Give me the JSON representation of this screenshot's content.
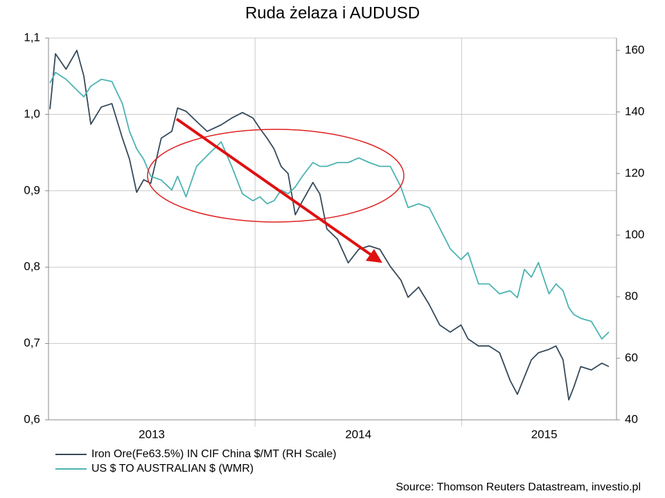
{
  "chart_data": {
    "type": "line",
    "title": "Ruda żelaza i AUDUSD",
    "source": "Source: Thomson Reuters Datastream, investio.pl",
    "x": [
      2013.007,
      2013.034,
      2013.085,
      2013.137,
      2013.171,
      2013.205,
      2013.256,
      2013.307,
      2013.358,
      2013.392,
      2013.427,
      2013.461,
      2013.495,
      2013.546,
      2013.597,
      2013.625,
      2013.666,
      2013.717,
      2013.768,
      2013.836,
      2013.887,
      2013.939,
      2013.99,
      2014.024,
      2014.058,
      2014.092,
      2014.126,
      2014.16,
      2014.195,
      2014.229,
      2014.28,
      2014.314,
      2014.348,
      2014.399,
      2014.451,
      2014.502,
      2014.553,
      2014.604,
      2014.655,
      2014.706,
      2014.741,
      2014.792,
      2014.843,
      2014.894,
      2014.945,
      2014.997,
      2015.031,
      2015.082,
      2015.133,
      2015.184,
      2015.235,
      2015.27,
      2015.304,
      2015.338,
      2015.372,
      2015.423,
      2015.457,
      2015.491,
      2015.519,
      2015.543,
      2015.577,
      2015.628,
      2015.679,
      2015.713
    ],
    "xlim": [
      2013,
      2015.75
    ],
    "xticks": [
      {
        "value": 2013.5,
        "label": "2013"
      },
      {
        "value": 2014.5,
        "label": "2014"
      },
      {
        "value": 2015.4,
        "label": "2015"
      }
    ],
    "x_gridlines": [
      2014,
      2015
    ],
    "ylim": [
      0.6,
      1.1
    ],
    "yticks": [
      {
        "value": 0.6,
        "label": "0,6"
      },
      {
        "value": 0.7,
        "label": "0,7"
      },
      {
        "value": 0.8,
        "label": "0,8"
      },
      {
        "value": 0.9,
        "label": "0,9"
      },
      {
        "value": 1.0,
        "label": "1,0"
      },
      {
        "value": 1.1,
        "label": "1,1"
      }
    ],
    "y2lim": [
      40,
      164
    ],
    "y2ticks": [
      40,
      60,
      80,
      100,
      120,
      140,
      160
    ],
    "grid": true,
    "series": [
      {
        "name": "Iron Ore(Fe63.5%) IN CIF China $/MT (RH Scale)",
        "color": "#34495a",
        "axis": "y2",
        "values": [
          140.9,
          158.9,
          153.9,
          160,
          151.7,
          136,
          141.6,
          142.7,
          131.5,
          124.7,
          113.9,
          118,
          116.8,
          131.5,
          133.7,
          141.3,
          140.2,
          136.9,
          133.7,
          135.8,
          138,
          139.8,
          138,
          134.6,
          131.5,
          128,
          122.3,
          120,
          106.6,
          111,
          117.1,
          113.3,
          102,
          98.7,
          91,
          95.4,
          96.5,
          95.4,
          89.8,
          85.4,
          79.8,
          83.1,
          77.5,
          70.8,
          68.5,
          70.8,
          66.3,
          64,
          64,
          61.8,
          52.8,
          48.3,
          53.9,
          59.5,
          61.8,
          62.9,
          64,
          59.5,
          46.5,
          50.6,
          57.3,
          56.2,
          58.4,
          57.3
        ]
      },
      {
        "name": "US $ TO AUSTRALIAN $ (WMR)",
        "color": "#4bb3b1",
        "values": [
          1.041,
          1.055,
          1.046,
          1.032,
          1.023,
          1.037,
          1.046,
          1.043,
          1.014,
          0.978,
          0.955,
          0.941,
          0.919,
          0.914,
          0.901,
          0.919,
          0.892,
          0.932,
          0.946,
          0.964,
          0.932,
          0.896,
          0.887,
          0.892,
          0.883,
          0.887,
          0.901,
          0.896,
          0.905,
          0.919,
          0.937,
          0.932,
          0.932,
          0.937,
          0.937,
          0.943,
          0.937,
          0.932,
          0.932,
          0.905,
          0.878,
          0.883,
          0.878,
          0.851,
          0.824,
          0.81,
          0.819,
          0.778,
          0.778,
          0.765,
          0.769,
          0.76,
          0.797,
          0.787,
          0.806,
          0.765,
          0.778,
          0.769,
          0.747,
          0.738,
          0.733,
          0.729,
          0.706,
          0.715
        ]
      }
    ]
  }
}
